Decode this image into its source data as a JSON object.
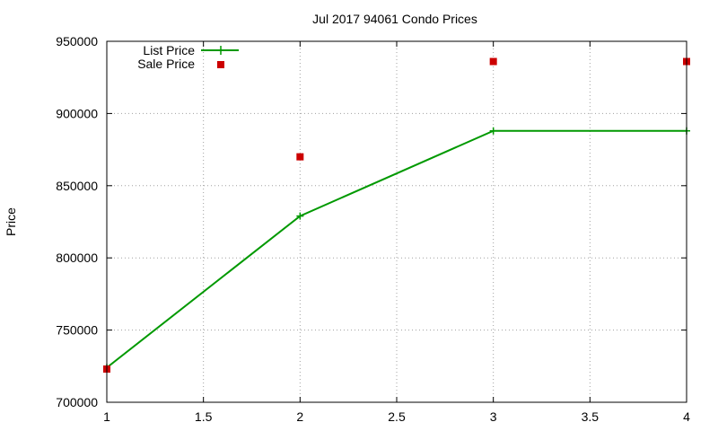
{
  "chart_data": {
    "type": "line",
    "title": "Jul 2017 94061 Condo Prices",
    "xlabel": "",
    "ylabel": "Price",
    "xlim": [
      1,
      4
    ],
    "ylim": [
      700000,
      950000
    ],
    "x_ticks": [
      "1",
      "1.5",
      "2",
      "2.5",
      "3",
      "3.5",
      "4"
    ],
    "y_ticks": [
      "700000",
      "750000",
      "800000",
      "850000",
      "900000",
      "950000"
    ],
    "grid": true,
    "legend_position": "top-left",
    "series": [
      {
        "name": "List Price",
        "style": "line-with-plus-markers",
        "color": "#009900",
        "points": [
          [
            1,
            724000
          ],
          [
            2,
            829000
          ],
          [
            3,
            888000
          ],
          [
            4,
            888000
          ]
        ]
      },
      {
        "name": "Sale Price",
        "style": "square-markers",
        "color": "#cc0000",
        "points": [
          [
            1,
            723000
          ],
          [
            2,
            870000
          ],
          [
            3,
            936000
          ],
          [
            4,
            936000
          ]
        ]
      }
    ]
  }
}
